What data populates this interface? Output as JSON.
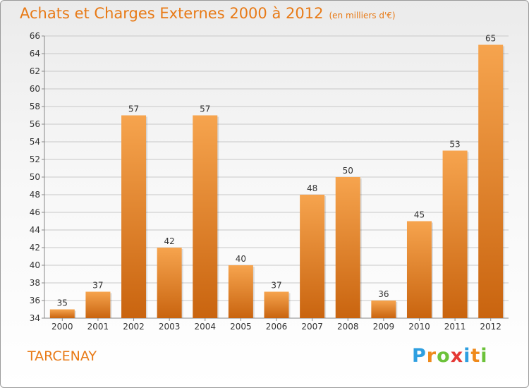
{
  "title": "Achats et Charges Externes 2000 à 2012",
  "unit": "(en milliers d'€)",
  "commune": "TARCENAY",
  "logo": {
    "text": "Proxiti",
    "letters": [
      "P",
      "r",
      "o",
      "x",
      "i",
      "t",
      "i"
    ]
  },
  "colors": {
    "bar_light": "#f6a44e",
    "bar_dark": "#c9640f",
    "accent": "#e87a16",
    "grid": "#c8c8c8",
    "text": "#333333"
  },
  "chart_data": {
    "type": "bar",
    "title": "Achats et Charges Externes 2000 à 2012",
    "xlabel": "",
    "ylabel": "",
    "categories": [
      "2000",
      "2001",
      "2002",
      "2003",
      "2004",
      "2005",
      "2006",
      "2007",
      "2008",
      "2009",
      "2010",
      "2011",
      "2012"
    ],
    "values": [
      35,
      37,
      57,
      42,
      57,
      40,
      37,
      48,
      50,
      36,
      45,
      53,
      65
    ],
    "ylim": [
      34,
      66
    ],
    "yticks": [
      34,
      36,
      38,
      40,
      42,
      44,
      46,
      48,
      50,
      52,
      54,
      56,
      58,
      60,
      62,
      64,
      66
    ],
    "grid": true,
    "data_labels": true
  }
}
